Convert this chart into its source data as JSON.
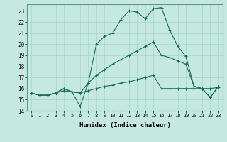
{
  "xlabel": "Humidex (Indice chaleur)",
  "xlim": [
    -0.5,
    23.5
  ],
  "ylim": [
    14,
    23.6
  ],
  "yticks": [
    14,
    15,
    16,
    17,
    18,
    19,
    20,
    21,
    22,
    23
  ],
  "xticks": [
    0,
    1,
    2,
    3,
    4,
    5,
    6,
    7,
    8,
    9,
    10,
    11,
    12,
    13,
    14,
    15,
    16,
    17,
    18,
    19,
    20,
    21,
    22,
    23
  ],
  "background_color": "#c5e8e0",
  "grid_color": "#a8d4cb",
  "line_color": "#1a6b5a",
  "line1_x": [
    0,
    1,
    2,
    3,
    4,
    5,
    6,
    7,
    8,
    9,
    10,
    11,
    12,
    13,
    14,
    15,
    16,
    17,
    18,
    19,
    20,
    21,
    22,
    23
  ],
  "line1_y": [
    15.6,
    15.4,
    15.4,
    15.6,
    15.8,
    15.7,
    15.6,
    15.8,
    16.0,
    16.2,
    16.3,
    16.5,
    16.6,
    16.8,
    17.0,
    17.2,
    16.0,
    16.0,
    16.0,
    16.0,
    16.0,
    16.0,
    16.0,
    16.1
  ],
  "line2_x": [
    0,
    1,
    2,
    3,
    4,
    5,
    6,
    7,
    8,
    9,
    10,
    11,
    12,
    13,
    14,
    15,
    16,
    17,
    18,
    19,
    20,
    21,
    22,
    23
  ],
  "line2_y": [
    15.6,
    15.4,
    15.4,
    15.6,
    16.0,
    15.7,
    15.6,
    16.5,
    17.2,
    17.7,
    18.2,
    18.6,
    19.0,
    19.4,
    19.8,
    20.2,
    19.0,
    18.8,
    18.5,
    18.2,
    16.2,
    16.0,
    15.2,
    16.2
  ],
  "line3_x": [
    0,
    1,
    2,
    3,
    4,
    5,
    6,
    7,
    8,
    9,
    10,
    11,
    12,
    13,
    14,
    15,
    16,
    17,
    18,
    19,
    20,
    21,
    22,
    23
  ],
  "line3_y": [
    15.6,
    15.4,
    15.4,
    15.6,
    16.0,
    15.7,
    14.4,
    16.5,
    20.0,
    20.7,
    21.0,
    22.2,
    23.0,
    22.9,
    22.3,
    23.2,
    23.3,
    21.3,
    19.8,
    18.9,
    16.2,
    16.0,
    15.2,
    16.2
  ]
}
